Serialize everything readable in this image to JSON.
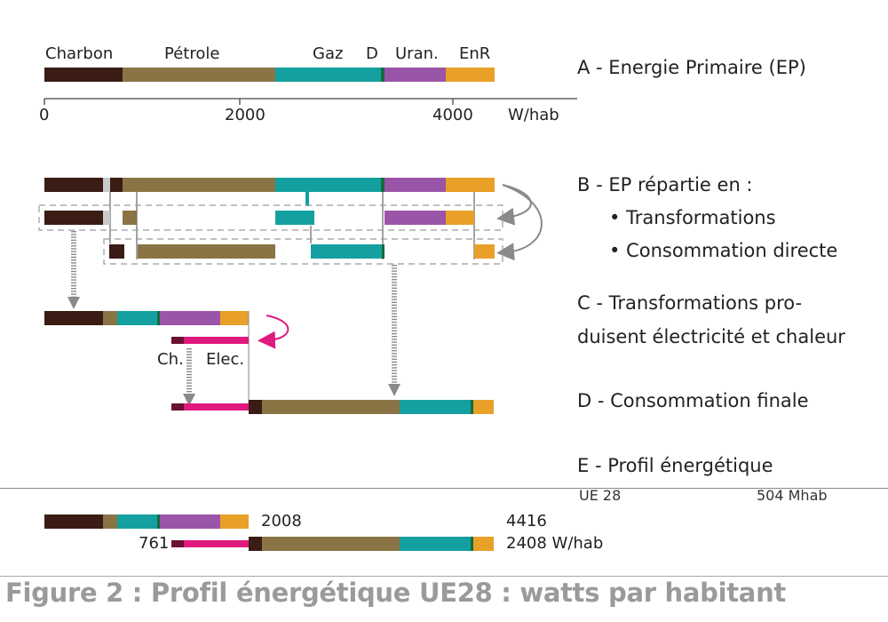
{
  "colors": {
    "charbon": "#3a1c14",
    "petrole": "#8a7446",
    "gaz": "#14a0a0",
    "d": "#156b3c",
    "uran": "#9b55a8",
    "enr": "#e9a028",
    "loss": "#c9c9c9",
    "elec": "#e0197e",
    "chaleur": "#6b1030",
    "arrow_gray": "#8a8a8a",
    "arrow_pink": "#e0197e",
    "caption": "#9a9a9a"
  },
  "legend": {
    "charbon": "Charbon",
    "petrole": "Pétrole",
    "gaz": "Gaz",
    "d": "D",
    "uran": "Uran.",
    "enr": "EnR"
  },
  "axis": {
    "ticks": [
      "0",
      "2000",
      "4000"
    ],
    "unit": "W/hab"
  },
  "steps": {
    "a": "A - Energie Primaire (EP)",
    "b_title": "B -  EP répartie en :",
    "b_item1": "• Transformations",
    "b_item2": "• Consommation directe",
    "c_line1": "C - Transformations pro-",
    "c_line2": "duisent électricité et chaleur",
    "d": "D - Consommation finale",
    "e": "E - Profil énergétique"
  },
  "labels": {
    "ch": "Ch.",
    "elec": "Elec."
  },
  "profile": {
    "region": "UE 28",
    "population": "504 Mhab",
    "transform_total": "2008",
    "primary_total": "4416",
    "heat_elec": "761",
    "final_total": "2408 W/hab"
  },
  "caption": "Figure 2 : Profil énergétique UE28 : watts par habitant"
}
